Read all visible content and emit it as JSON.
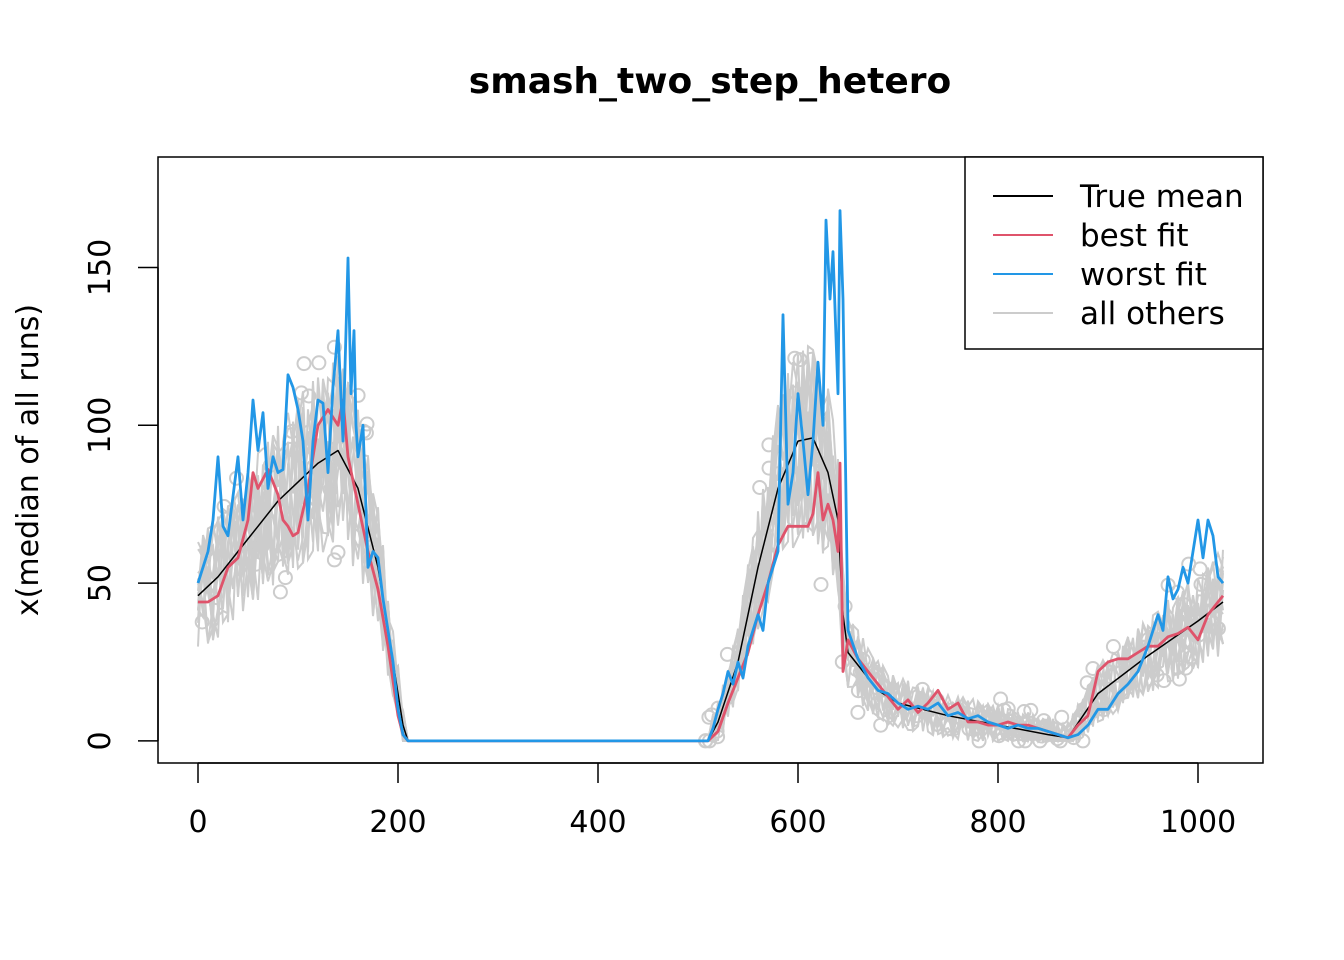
{
  "chart_data": {
    "type": "line",
    "title": "smash_two_step_hetero",
    "xlabel": "",
    "ylabel": "x(median of all runs)",
    "xlim": [
      -40,
      1065
    ],
    "ylim": [
      -7,
      185
    ],
    "x_ticks": [
      0,
      200,
      400,
      600,
      800,
      1000
    ],
    "x_tick_labels": [
      "0",
      "200",
      "400",
      "600",
      "800",
      "1000"
    ],
    "y_ticks": [
      0,
      50,
      100,
      150
    ],
    "y_tick_labels": [
      "0",
      "50",
      "100",
      "150"
    ],
    "legend_position": "top-right",
    "legend": [
      {
        "name": "True mean",
        "color": "#000000"
      },
      {
        "name": "best fit",
        "color": "#DF536B"
      },
      {
        "name": "worst fit",
        "color": "#2297E6"
      },
      {
        "name": "all others",
        "color": "#CCCCCC"
      }
    ],
    "series": [
      {
        "name": "True mean",
        "color": "#000000",
        "x": [
          0,
          20,
          40,
          60,
          80,
          100,
          120,
          140,
          160,
          180,
          195,
          205,
          210,
          300,
          400,
          510,
          520,
          540,
          560,
          580,
          600,
          615,
          630,
          640,
          645,
          650,
          680,
          700,
          750,
          800,
          850,
          870,
          900,
          950,
          1000,
          1025
        ],
        "y": [
          46,
          52,
          60,
          68,
          76,
          82,
          88,
          92,
          80,
          55,
          25,
          5,
          0,
          0,
          0,
          0,
          6,
          25,
          55,
          80,
          95,
          96,
          85,
          70,
          40,
          28,
          16,
          12,
          8,
          5,
          2,
          1,
          15,
          27,
          38,
          44
        ]
      },
      {
        "name": "best fit",
        "color": "#DF536B",
        "x": [
          0,
          10,
          20,
          30,
          40,
          50,
          55,
          60,
          70,
          80,
          85,
          90,
          95,
          100,
          110,
          120,
          130,
          140,
          145,
          150,
          160,
          170,
          180,
          190,
          200,
          205,
          210,
          300,
          400,
          510,
          520,
          530,
          540,
          550,
          560,
          570,
          580,
          590,
          600,
          610,
          615,
          620,
          625,
          630,
          635,
          640,
          642,
          645,
          650,
          660,
          670,
          680,
          690,
          700,
          710,
          720,
          730,
          740,
          750,
          760,
          770,
          780,
          790,
          800,
          810,
          820,
          830,
          840,
          850,
          860,
          870,
          880,
          890,
          900,
          910,
          920,
          930,
          940,
          950,
          960,
          970,
          980,
          990,
          1000,
          1010,
          1020,
          1025
        ],
        "y": [
          44,
          44,
          46,
          55,
          58,
          70,
          85,
          80,
          86,
          78,
          70,
          68,
          65,
          66,
          80,
          100,
          105,
          100,
          108,
          90,
          75,
          60,
          48,
          30,
          8,
          2,
          0,
          0,
          0,
          0,
          3,
          12,
          20,
          28,
          40,
          50,
          62,
          68,
          68,
          68,
          72,
          85,
          70,
          75,
          70,
          60,
          88,
          22,
          32,
          26,
          22,
          18,
          14,
          10,
          13,
          9,
          12,
          16,
          10,
          12,
          6,
          6,
          5,
          5,
          6,
          5,
          5,
          4,
          3,
          2,
          1,
          5,
          8,
          22,
          25,
          26,
          26,
          28,
          30,
          30,
          33,
          34,
          36,
          32,
          40,
          44,
          46
        ]
      },
      {
        "name": "worst fit",
        "color": "#2297E6",
        "x": [
          0,
          10,
          15,
          20,
          25,
          30,
          40,
          45,
          50,
          55,
          60,
          65,
          70,
          75,
          80,
          85,
          90,
          95,
          100,
          105,
          110,
          115,
          120,
          125,
          130,
          135,
          140,
          145,
          150,
          153,
          156,
          158,
          160,
          165,
          170,
          175,
          180,
          185,
          190,
          195,
          200,
          205,
          210,
          300,
          400,
          510,
          515,
          520,
          525,
          530,
          535,
          540,
          545,
          550,
          555,
          560,
          565,
          570,
          575,
          580,
          585,
          590,
          595,
          600,
          605,
          610,
          615,
          620,
          625,
          628,
          632,
          635,
          638,
          640,
          642,
          645,
          650,
          660,
          670,
          680,
          690,
          700,
          710,
          720,
          730,
          740,
          750,
          760,
          770,
          780,
          790,
          800,
          810,
          820,
          830,
          840,
          850,
          860,
          870,
          880,
          890,
          900,
          910,
          920,
          930,
          940,
          950,
          960,
          965,
          970,
          975,
          980,
          985,
          990,
          995,
          1000,
          1005,
          1010,
          1015,
          1020,
          1025
        ],
        "y": [
          50,
          60,
          70,
          90,
          68,
          65,
          90,
          70,
          85,
          108,
          92,
          104,
          80,
          90,
          85,
          86,
          116,
          112,
          105,
          95,
          70,
          95,
          108,
          107,
          85,
          112,
          130,
          95,
          153,
          110,
          130,
          100,
          90,
          100,
          55,
          60,
          58,
          45,
          35,
          25,
          10,
          2,
          0,
          0,
          0,
          0,
          4,
          10,
          15,
          22,
          18,
          25,
          20,
          30,
          35,
          40,
          35,
          50,
          55,
          60,
          135,
          75,
          85,
          110,
          95,
          78,
          95,
          120,
          100,
          165,
          140,
          155,
          128,
          110,
          168,
          140,
          35,
          26,
          20,
          16,
          15,
          12,
          10,
          11,
          10,
          12,
          8,
          9,
          7,
          8,
          6,
          5,
          4,
          5,
          4,
          4,
          3,
          2,
          1,
          2,
          5,
          10,
          10,
          15,
          18,
          22,
          30,
          40,
          35,
          52,
          45,
          48,
          55,
          50,
          60,
          70,
          58,
          70,
          65,
          52,
          50
        ]
      }
    ]
  }
}
